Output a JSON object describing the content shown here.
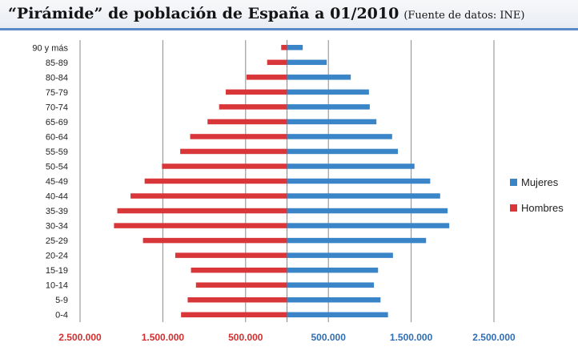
{
  "header": {
    "title": "“Pirámide” de población de España a 01/2010",
    "source": "(Fuente de datos: INE)"
  },
  "colors": {
    "mujeres": "#3a85c8",
    "hombres": "#d9363a",
    "grid": "#8a8a8a",
    "tick_left": "#d03030",
    "tick_right": "#2f6eb5"
  },
  "chart_data": {
    "type": "bar",
    "orientation": "horizontal",
    "categories": [
      "0-4",
      "5-9",
      "10-14",
      "15-19",
      "20-24",
      "25-29",
      "30-34",
      "35-39",
      "40-44",
      "45-49",
      "50-54",
      "55-59",
      "60-64",
      "65-69",
      "70-74",
      "75-79",
      "80-84",
      "85-89",
      "90 y más"
    ],
    "series": [
      {
        "name": "Mujeres",
        "values": [
          1220000,
          1130000,
          1050000,
          1100000,
          1280000,
          1680000,
          1960000,
          1940000,
          1850000,
          1730000,
          1540000,
          1340000,
          1270000,
          1080000,
          1000000,
          990000,
          770000,
          480000,
          190000
        ]
      },
      {
        "name": "Hombres",
        "values": [
          -1280000,
          -1200000,
          -1100000,
          -1160000,
          -1350000,
          -1740000,
          -2090000,
          -2050000,
          -1890000,
          -1720000,
          -1510000,
          -1290000,
          -1170000,
          -960000,
          -820000,
          -740000,
          -490000,
          -240000,
          -70000
        ]
      }
    ],
    "x_ticks": [
      {
        "value": -2500000,
        "label": "2.500.000"
      },
      {
        "value": -1500000,
        "label": "1.500.000"
      },
      {
        "value": -500000,
        "label": "500.000"
      },
      {
        "value": 500000,
        "label": "500.000"
      },
      {
        "value": 1500000,
        "label": "1.500.000"
      },
      {
        "value": 2500000,
        "label": "2.500.000"
      }
    ],
    "xlim": [
      -2500000,
      2500000
    ],
    "grid": true,
    "legend": "right"
  }
}
